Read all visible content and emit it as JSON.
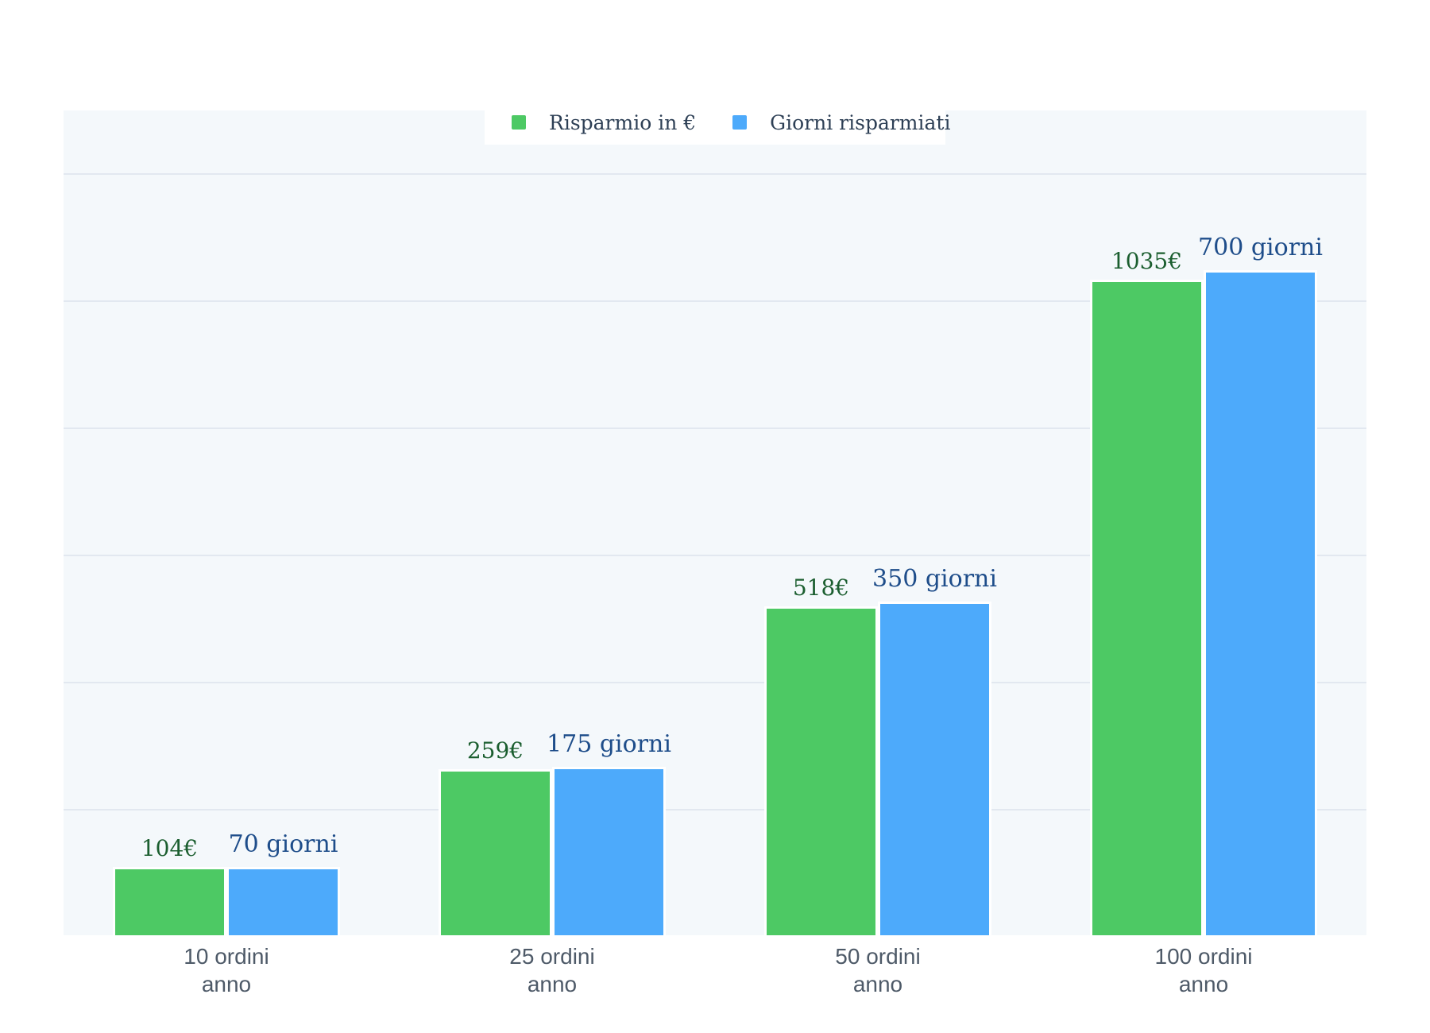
{
  "legend": {
    "items": [
      {
        "label": "Risparmio in €",
        "color": "#4dc964"
      },
      {
        "label": "Giorni risparmiati",
        "color": "#4daafb"
      }
    ]
  },
  "chart_data": {
    "type": "bar",
    "title": "",
    "xlabel": "",
    "ylabel": "",
    "grid": true,
    "legend_position": "top-center",
    "plot_background": "#f4f8fb",
    "gridline_color": "#e2e8f0",
    "categories": [
      "10 ordini anno",
      "25 ordini anno",
      "50 ordini anno",
      "100 ordini anno"
    ],
    "categories_display": [
      [
        "10 ordini",
        "anno"
      ],
      [
        "25 ordini",
        "anno"
      ],
      [
        "50 ordini",
        "anno"
      ],
      [
        "100 ordini",
        "anno"
      ]
    ],
    "series": [
      {
        "name": "Risparmio in €",
        "values": [
          104,
          259,
          518,
          1035
        ],
        "data_labels": [
          "104€",
          "259€",
          "518€",
          "1035€"
        ],
        "color": "#4dc964",
        "label_color": "#1b5e2f",
        "axis": "left",
        "axis_range": [
          0,
          1307
        ]
      },
      {
        "name": "Giorni risparmiati",
        "values": [
          70,
          175,
          350,
          700
        ],
        "data_labels": [
          "70 giorni",
          "175 giorni",
          "350 giorni",
          "700 giorni"
        ],
        "color": "#4daafb",
        "label_color": "#1e4d8a",
        "axis": "right",
        "axis_range": [
          0,
          871
        ]
      }
    ]
  }
}
